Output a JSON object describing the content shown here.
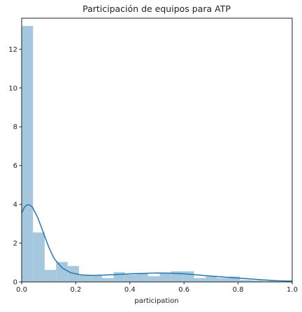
{
  "chart_data": {
    "type": "bar",
    "title": "Participación de equipos para ATP",
    "xlabel": "participation",
    "ylabel": "",
    "xlim": [
      0,
      1.0
    ],
    "ylim": [
      0,
      13.6
    ],
    "x_ticks": [
      "0.0",
      "0.2",
      "0.4",
      "0.6",
      "0.8",
      "1.0"
    ],
    "y_ticks": [
      "0",
      "2",
      "4",
      "6",
      "8",
      "10",
      "12"
    ],
    "grid": false,
    "legend": "none",
    "histogram": {
      "bin_edges": [
        0.0,
        0.042,
        0.085,
        0.127,
        0.17,
        0.212,
        0.255,
        0.297,
        0.34,
        0.382,
        0.425,
        0.467,
        0.51,
        0.552,
        0.595,
        0.637,
        0.68,
        0.722,
        0.765,
        0.807,
        0.85,
        0.892,
        0.935,
        0.977,
        1.0
      ],
      "values": [
        13.2,
        2.55,
        0.62,
        1.03,
        0.82,
        0.33,
        0.33,
        0.2,
        0.5,
        0.38,
        0.42,
        0.3,
        0.48,
        0.55,
        0.55,
        0.2,
        0.28,
        0.2,
        0.28,
        0.1,
        0.08,
        0.05,
        0.04,
        0.04
      ]
    },
    "kde": {
      "x": [
        0.0,
        0.01,
        0.02,
        0.03,
        0.04,
        0.06,
        0.08,
        0.1,
        0.12,
        0.15,
        0.18,
        0.22,
        0.26,
        0.3,
        0.35,
        0.4,
        0.45,
        0.5,
        0.55,
        0.6,
        0.65,
        0.7,
        0.75,
        0.8,
        0.85,
        0.9,
        0.95,
        1.0
      ],
      "y": [
        3.55,
        3.85,
        3.98,
        3.97,
        3.85,
        3.3,
        2.55,
        1.8,
        1.2,
        0.72,
        0.48,
        0.36,
        0.34,
        0.35,
        0.38,
        0.42,
        0.44,
        0.46,
        0.45,
        0.42,
        0.36,
        0.3,
        0.25,
        0.2,
        0.15,
        0.1,
        0.06,
        0.04
      ]
    },
    "colors": {
      "bar": "#a6c8df",
      "kde": "#2a76ad",
      "axis": "#222222"
    }
  }
}
